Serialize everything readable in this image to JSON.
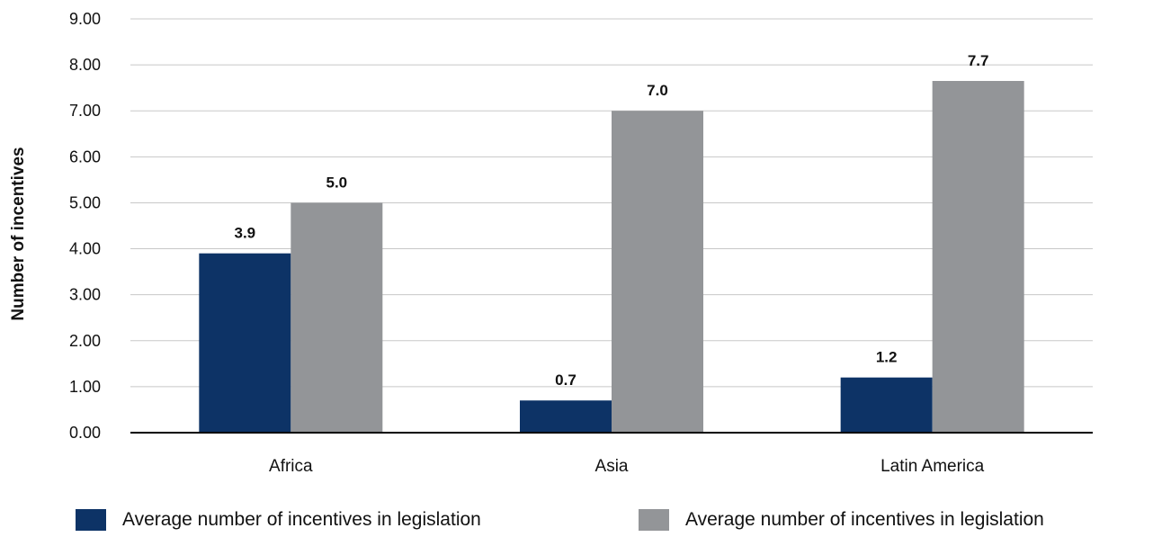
{
  "chart_data": {
    "type": "bar",
    "title": "",
    "xlabel": "",
    "ylabel": "Number of incentives",
    "categories": [
      "Africa",
      "Asia",
      "Latin America"
    ],
    "series": [
      {
        "name": "Average number of incentives in legislation",
        "values": [
          3.9,
          0.7,
          1.2
        ],
        "labels": [
          "3.9",
          "0.7",
          "1.2"
        ],
        "color": "#0d3366"
      },
      {
        "name": "Average number of incentives in legislation",
        "values": [
          5.0,
          7.0,
          7.65
        ],
        "labels": [
          "5.0",
          "7.0",
          "7.7"
        ],
        "color": "#939598"
      }
    ],
    "ylim": [
      0,
      9
    ],
    "yticks": [
      0,
      1,
      2,
      3,
      4,
      5,
      6,
      7,
      8,
      9
    ],
    "ytick_labels": [
      "0.00",
      "1.00",
      "2.00",
      "3.00",
      "4.00",
      "5.00",
      "6.00",
      "7.00",
      "8.00",
      "9.00"
    ],
    "grid": true,
    "gridline_color": "#c8c8c8",
    "axis_color": "#000000",
    "legend_position": "bottom"
  }
}
